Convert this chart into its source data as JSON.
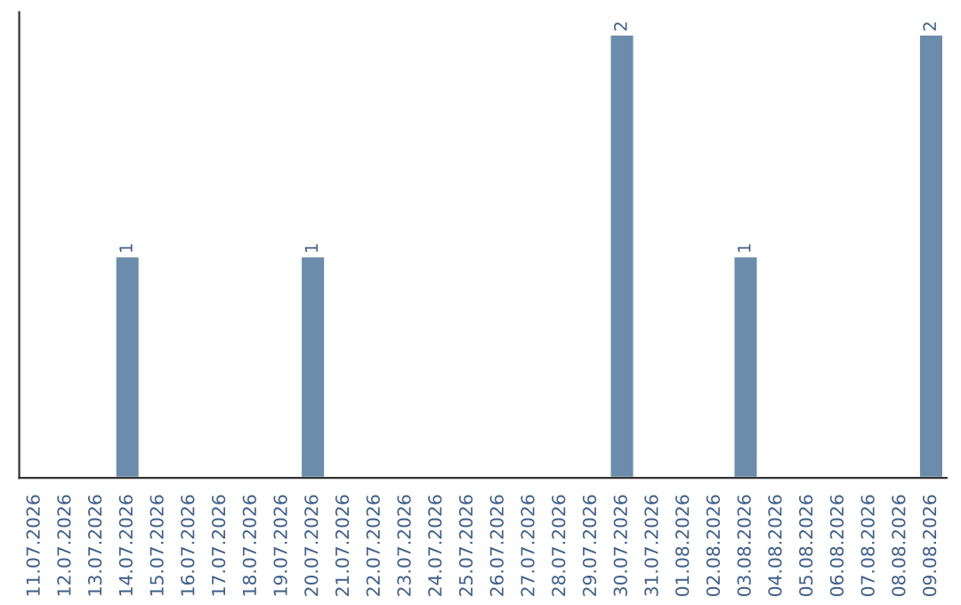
{
  "chart_data": {
    "type": "bar",
    "categories": [
      "11.07.2026",
      "12.07.2026",
      "13.07.2026",
      "14.07.2026",
      "15.07.2026",
      "16.07.2026",
      "17.07.2026",
      "18.07.2026",
      "19.07.2026",
      "20.07.2026",
      "21.07.2026",
      "22.07.2026",
      "23.07.2026",
      "24.07.2026",
      "25.07.2026",
      "26.07.2026",
      "27.07.2026",
      "28.07.2026",
      "29.07.2026",
      "30.07.2026",
      "31.07.2026",
      "01.08.2026",
      "02.08.2026",
      "03.08.2026",
      "04.08.2026",
      "05.08.2026",
      "06.08.2026",
      "07.08.2026",
      "08.08.2026",
      "09.08.2026"
    ],
    "values": [
      0,
      0,
      0,
      1,
      0,
      0,
      0,
      0,
      0,
      1,
      0,
      0,
      0,
      0,
      0,
      0,
      0,
      0,
      0,
      2,
      0,
      0,
      0,
      1,
      0,
      0,
      0,
      0,
      0,
      2
    ],
    "value_labels": [
      null,
      null,
      null,
      "1",
      null,
      null,
      null,
      null,
      null,
      "1",
      null,
      null,
      null,
      null,
      null,
      null,
      null,
      null,
      null,
      "2",
      null,
      null,
      null,
      "1",
      null,
      null,
      null,
      null,
      null,
      "2"
    ],
    "color": "#6b8cab",
    "tick_labels": "x",
    "grid": false
  }
}
